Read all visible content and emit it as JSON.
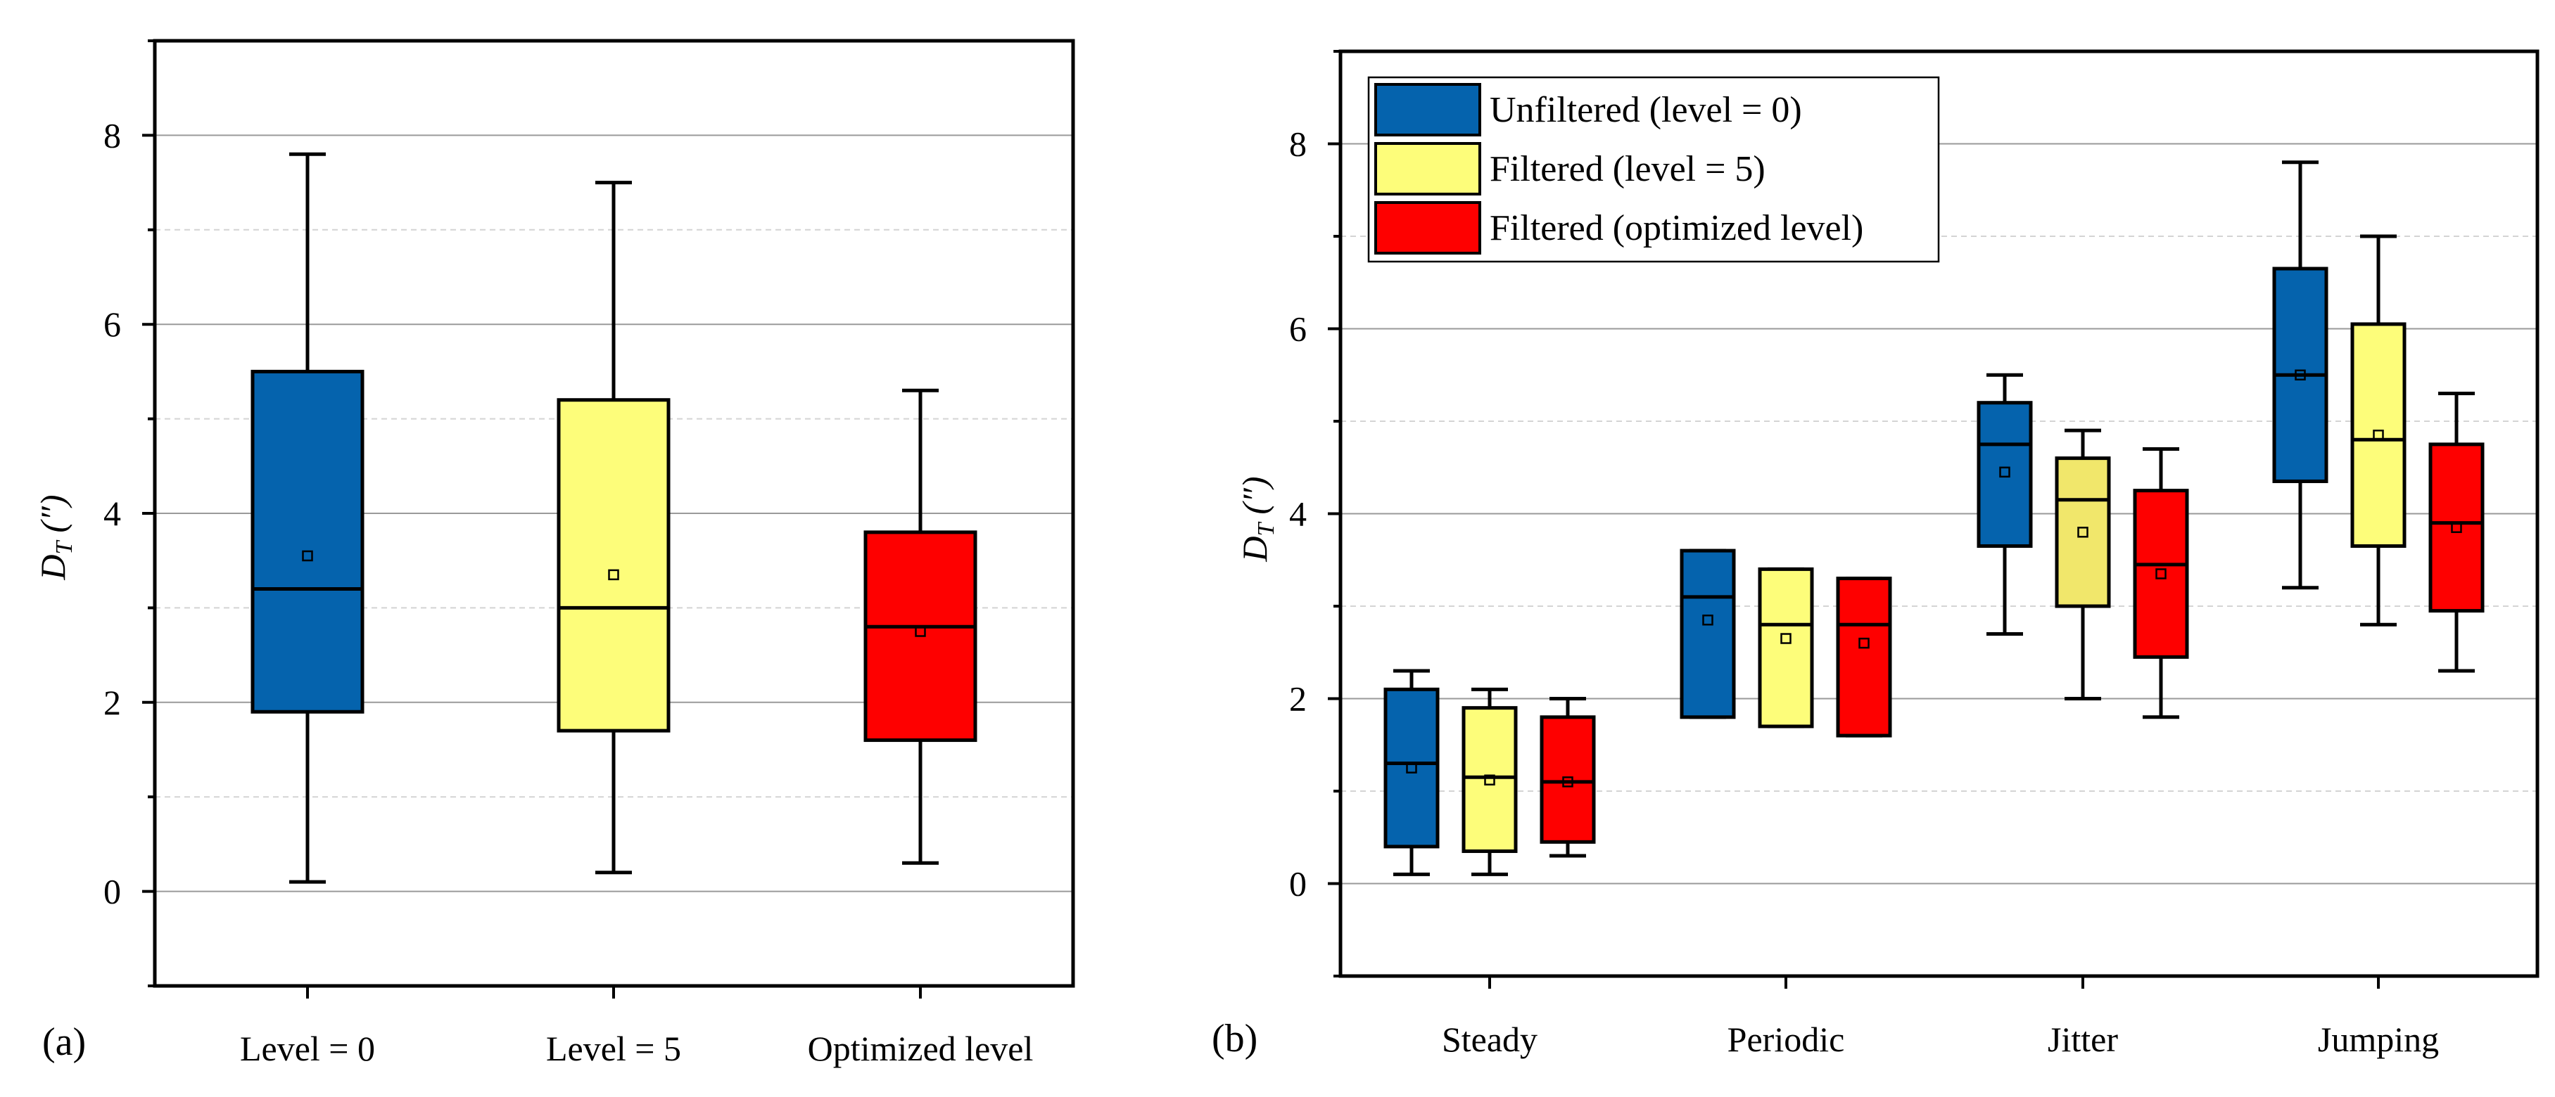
{
  "colors": {
    "unfiltered": "#0563ad",
    "filtered5": "#fdfd7a",
    "filtered5_jitter": "#f1e76b",
    "optimized": "#fe0000",
    "axis": "#000000",
    "grid_major": "#9a9a9a",
    "grid_minor": "#d4d4d4"
  },
  "chart_data": [
    {
      "type": "box",
      "panel_label": "(a)",
      "ylabel": {
        "main": "D",
        "sub": "T",
        "unit": "(″)"
      },
      "ylim": [
        -1,
        9
      ],
      "yticks": [
        0,
        2,
        4,
        6,
        8
      ],
      "ytick_labels": [
        "0",
        "2",
        "4",
        "6",
        "8"
      ],
      "grid": "major solid, minor dashed",
      "categories": [
        "Level = 0",
        "Level = 5",
        "Optimized level"
      ],
      "boxes": [
        {
          "name": "Level = 0",
          "color_key": "unfiltered",
          "min": 0.1,
          "q1": 1.9,
          "median": 3.2,
          "q3": 5.5,
          "max": 7.8,
          "mean": 3.55
        },
        {
          "name": "Level = 5",
          "color_key": "filtered5",
          "min": 0.2,
          "q1": 1.7,
          "median": 3.0,
          "q3": 5.2,
          "max": 7.5,
          "mean": 3.35
        },
        {
          "name": "Optimized level",
          "color_key": "optimized",
          "min": 0.3,
          "q1": 1.6,
          "median": 2.8,
          "q3": 3.8,
          "max": 5.3,
          "mean": 2.75
        }
      ]
    },
    {
      "type": "box",
      "panel_label": "(b)",
      "ylabel": {
        "main": "D",
        "sub": "T",
        "unit": "(″)"
      },
      "ylim": [
        -1,
        9
      ],
      "yticks": [
        0,
        2,
        4,
        6,
        8
      ],
      "ytick_labels": [
        "0",
        "2",
        "4",
        "6",
        "8"
      ],
      "grid": "major solid, minor dashed",
      "categories": [
        "Steady",
        "Periodic",
        "Jitter",
        "Jumping"
      ],
      "legend": {
        "position": "top-left",
        "entries": [
          {
            "label": "Unfiltered (level = 0)",
            "color_key": "unfiltered"
          },
          {
            "label": "Filtered (level = 5)",
            "color_key": "filtered5"
          },
          {
            "label": "Filtered (optimized level)",
            "color_key": "optimized"
          }
        ]
      },
      "series": [
        {
          "name": "Unfiltered (level = 0)",
          "color_key": "unfiltered",
          "boxes": [
            {
              "category": "Steady",
              "min": 0.1,
              "q1": 0.4,
              "median": 1.3,
              "q3": 2.1,
              "max": 2.3,
              "mean": 1.25
            },
            {
              "category": "Periodic",
              "min": 1.8,
              "q1": 1.8,
              "median": 3.1,
              "q3": 3.6,
              "max": 3.6,
              "mean": 2.85
            },
            {
              "category": "Jitter",
              "min": 2.7,
              "q1": 3.65,
              "median": 4.75,
              "q3": 5.2,
              "max": 5.5,
              "mean": 4.45
            },
            {
              "category": "Jumping",
              "min": 3.2,
              "q1": 4.35,
              "median": 5.5,
              "q3": 6.65,
              "max": 7.8,
              "mean": 5.5
            }
          ]
        },
        {
          "name": "Filtered (level = 5)",
          "color_key": "filtered5",
          "boxes": [
            {
              "category": "Steady",
              "min": 0.1,
              "q1": 0.35,
              "median": 1.15,
              "q3": 1.9,
              "max": 2.1,
              "mean": 1.12
            },
            {
              "category": "Periodic",
              "min": 1.7,
              "q1": 1.7,
              "median": 2.8,
              "q3": 3.4,
              "max": 3.4,
              "mean": 2.65
            },
            {
              "category": "Jitter",
              "min": 2.0,
              "q1": 3.0,
              "median": 4.15,
              "q3": 4.6,
              "max": 4.9,
              "mean": 3.8,
              "color_key": "filtered5_jitter"
            },
            {
              "category": "Jumping",
              "min": 2.8,
              "q1": 3.65,
              "median": 4.8,
              "q3": 6.05,
              "max": 7.0,
              "mean": 4.85
            }
          ]
        },
        {
          "name": "Filtered (optimized level)",
          "color_key": "optimized",
          "boxes": [
            {
              "category": "Steady",
              "min": 0.3,
              "q1": 0.45,
              "median": 1.1,
              "q3": 1.8,
              "max": 2.0,
              "mean": 1.1
            },
            {
              "category": "Periodic",
              "min": 1.6,
              "q1": 1.6,
              "median": 2.8,
              "q3": 3.3,
              "max": 3.3,
              "mean": 2.6
            },
            {
              "category": "Jitter",
              "min": 1.8,
              "q1": 2.45,
              "median": 3.45,
              "q3": 4.25,
              "max": 4.7,
              "mean": 3.35
            },
            {
              "category": "Jumping",
              "min": 2.3,
              "q1": 2.95,
              "median": 3.9,
              "q3": 4.75,
              "max": 5.3,
              "mean": 3.85
            }
          ]
        }
      ]
    }
  ]
}
